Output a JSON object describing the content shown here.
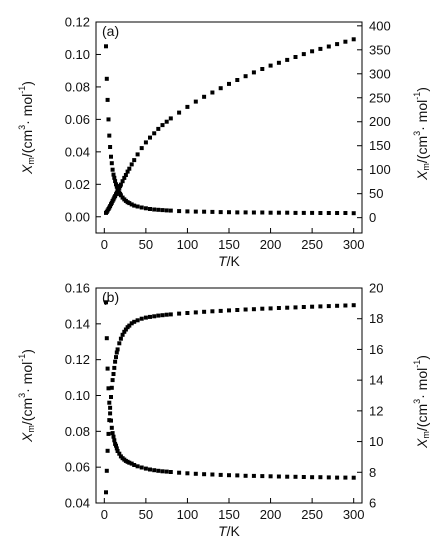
{
  "chart_data": [
    {
      "type": "scatter",
      "panel_label": "(a)",
      "xlabel": {
        "main": "T",
        "suffix": "/K"
      },
      "ylabel_left": {
        "main": "X",
        "sub": "m",
        "rest": "/(cm",
        "sup": "3",
        "rest2": "· mol",
        "sup2": "-1",
        "close": ")"
      },
      "ylabel_right": {
        "main": "X",
        "sub": "m",
        "rest": "/(cm",
        "sup": "3",
        "rest2": "· mol",
        "sup2": "-1",
        "close": ")"
      },
      "xlim": [
        -10,
        310
      ],
      "ylim_left": [
        -0.01,
        0.12
      ],
      "ylim_right": [
        -32,
        408
      ],
      "x_ticks": [
        "0",
        "50",
        "100",
        "150",
        "200",
        "250",
        "300"
      ],
      "y_ticks_left": [
        "0.00",
        "0.02",
        "0.04",
        "0.06",
        "0.08",
        "0.10",
        "0.12"
      ],
      "y_ticks_right": [
        "0",
        "50",
        "100",
        "150",
        "200",
        "250",
        "300",
        "350",
        "400"
      ],
      "grid": false,
      "marker_color": "#000000",
      "series": [
        {
          "axis": "left",
          "x": [
            2,
            3,
            4,
            5,
            6,
            7,
            8,
            9,
            10,
            11,
            12,
            13,
            14,
            15,
            16,
            17,
            18,
            19,
            20,
            22,
            24,
            26,
            28,
            30,
            33,
            36,
            40,
            45,
            50,
            55,
            60,
            65,
            70,
            75,
            80,
            90,
            100,
            110,
            120,
            130,
            140,
            150,
            160,
            170,
            180,
            190,
            200,
            210,
            220,
            230,
            240,
            250,
            260,
            270,
            280,
            290,
            300
          ],
          "y": [
            0.105,
            0.085,
            0.072,
            0.06,
            0.05,
            0.043,
            0.037,
            0.033,
            0.029,
            0.026,
            0.024,
            0.022,
            0.02,
            0.0185,
            0.017,
            0.016,
            0.015,
            0.014,
            0.0132,
            0.0118,
            0.0107,
            0.0098,
            0.009,
            0.0084,
            0.0076,
            0.0069,
            0.0063,
            0.0057,
            0.0052,
            0.0048,
            0.0045,
            0.0043,
            0.0041,
            0.0039,
            0.0038,
            0.0035,
            0.0033,
            0.0032,
            0.0031,
            0.003,
            0.0029,
            0.0028,
            0.0027,
            0.0027,
            0.0026,
            0.0026,
            0.0025,
            0.0025,
            0.0025,
            0.0024,
            0.0024,
            0.0024,
            0.0023,
            0.0023,
            0.0023,
            0.0023,
            0.0022
          ]
        },
        {
          "axis": "right",
          "x": [
            2,
            3,
            4,
            5,
            6,
            7,
            8,
            9,
            10,
            11,
            12,
            13,
            14,
            15,
            16,
            17,
            18,
            19,
            20,
            22,
            24,
            26,
            28,
            30,
            33,
            36,
            40,
            45,
            50,
            55,
            60,
            65,
            70,
            75,
            80,
            90,
            100,
            110,
            120,
            130,
            140,
            150,
            160,
            170,
            180,
            190,
            200,
            210,
            220,
            230,
            240,
            250,
            260,
            270,
            280,
            290,
            300
          ],
          "y": [
            10,
            12,
            15,
            18,
            21,
            24,
            28,
            31,
            35,
            38,
            42,
            45,
            49,
            52,
            56,
            59,
            62,
            66,
            69,
            76,
            83,
            89,
            96,
            102,
            111,
            120,
            132,
            145,
            157,
            167,
            176,
            185,
            193,
            200,
            207,
            219,
            231,
            242,
            252,
            261,
            270,
            279,
            287,
            295,
            303,
            310,
            317,
            323,
            329,
            335,
            341,
            347,
            352,
            357,
            362,
            367,
            372
          ]
        }
      ]
    },
    {
      "type": "scatter",
      "panel_label": "(b)",
      "xlabel": {
        "main": "T",
        "suffix": "/K"
      },
      "ylabel_left": {
        "main": "X",
        "sub": "m",
        "rest": "/(cm",
        "sup": "3",
        "rest2": "· mol",
        "sup2": "-1",
        "close": ")"
      },
      "ylabel_right": {
        "main": "X",
        "sub": "m",
        "rest": "/(cm",
        "sup": "3",
        "rest2": "· mol",
        "sup2": "-1",
        "close": ")"
      },
      "xlim": [
        -10,
        310
      ],
      "ylim_left": [
        0.04,
        0.16
      ],
      "ylim_right": [
        6,
        20
      ],
      "x_ticks": [
        "0",
        "50",
        "100",
        "150",
        "200",
        "250",
        "300"
      ],
      "y_ticks_left": [
        "0.04",
        "0.06",
        "0.08",
        "0.10",
        "0.12",
        "0.14",
        "0.16"
      ],
      "y_ticks_right": [
        "6",
        "8",
        "10",
        "12",
        "14",
        "16",
        "18",
        "20"
      ],
      "grid": false,
      "marker_color": "#000000",
      "series": [
        {
          "axis": "left",
          "x": [
            2,
            3,
            4,
            5,
            6,
            7,
            8,
            9,
            10,
            11,
            12,
            13,
            14,
            15,
            16,
            18,
            20,
            22,
            24,
            26,
            28,
            30,
            33,
            36,
            40,
            45,
            50,
            55,
            60,
            65,
            70,
            75,
            80,
            90,
            100,
            110,
            120,
            130,
            140,
            150,
            160,
            170,
            180,
            190,
            200,
            210,
            220,
            230,
            240,
            250,
            260,
            270,
            280,
            290,
            300
          ],
          "y": [
            0.152,
            0.132,
            0.115,
            0.104,
            0.096,
            0.09,
            0.086,
            0.082,
            0.079,
            0.077,
            0.075,
            0.073,
            0.072,
            0.0705,
            0.069,
            0.0675,
            0.066,
            0.065,
            0.0642,
            0.0635,
            0.063,
            0.0625,
            0.062,
            0.0612,
            0.0605,
            0.0598,
            0.0592,
            0.0587,
            0.0583,
            0.058,
            0.0577,
            0.0575,
            0.0573,
            0.0569,
            0.0566,
            0.0563,
            0.0561,
            0.0559,
            0.0557,
            0.0555,
            0.0554,
            0.0552,
            0.0551,
            0.055,
            0.0549,
            0.0548,
            0.0547,
            0.0546,
            0.0545,
            0.0544,
            0.0544,
            0.0543,
            0.0542,
            0.0542,
            0.0541
          ]
        },
        {
          "axis": "right",
          "x": [
            2,
            3,
            4,
            5,
            6,
            7,
            8,
            9,
            10,
            11,
            12,
            13,
            14,
            15,
            16,
            18,
            20,
            22,
            24,
            26,
            28,
            30,
            33,
            36,
            40,
            45,
            50,
            55,
            60,
            65,
            70,
            75,
            80,
            90,
            100,
            110,
            120,
            130,
            140,
            150,
            160,
            170,
            180,
            190,
            200,
            210,
            220,
            230,
            240,
            250,
            260,
            270,
            280,
            290,
            300
          ],
          "y": [
            6.7,
            8.1,
            9.4,
            10.5,
            11.4,
            12.2,
            12.9,
            13.5,
            14.0,
            14.4,
            14.8,
            15.2,
            15.5,
            15.8,
            16.0,
            16.4,
            16.7,
            16.95,
            17.15,
            17.3,
            17.45,
            17.55,
            17.7,
            17.8,
            17.9,
            18.0,
            18.07,
            18.12,
            18.16,
            18.2,
            18.23,
            18.26,
            18.28,
            18.33,
            18.37,
            18.41,
            18.45,
            18.48,
            18.51,
            18.54,
            18.57,
            18.6,
            18.62,
            18.65,
            18.67,
            18.7,
            18.72,
            18.74,
            18.76,
            18.78,
            18.8,
            18.82,
            18.84,
            18.86,
            18.88
          ]
        }
      ]
    }
  ]
}
